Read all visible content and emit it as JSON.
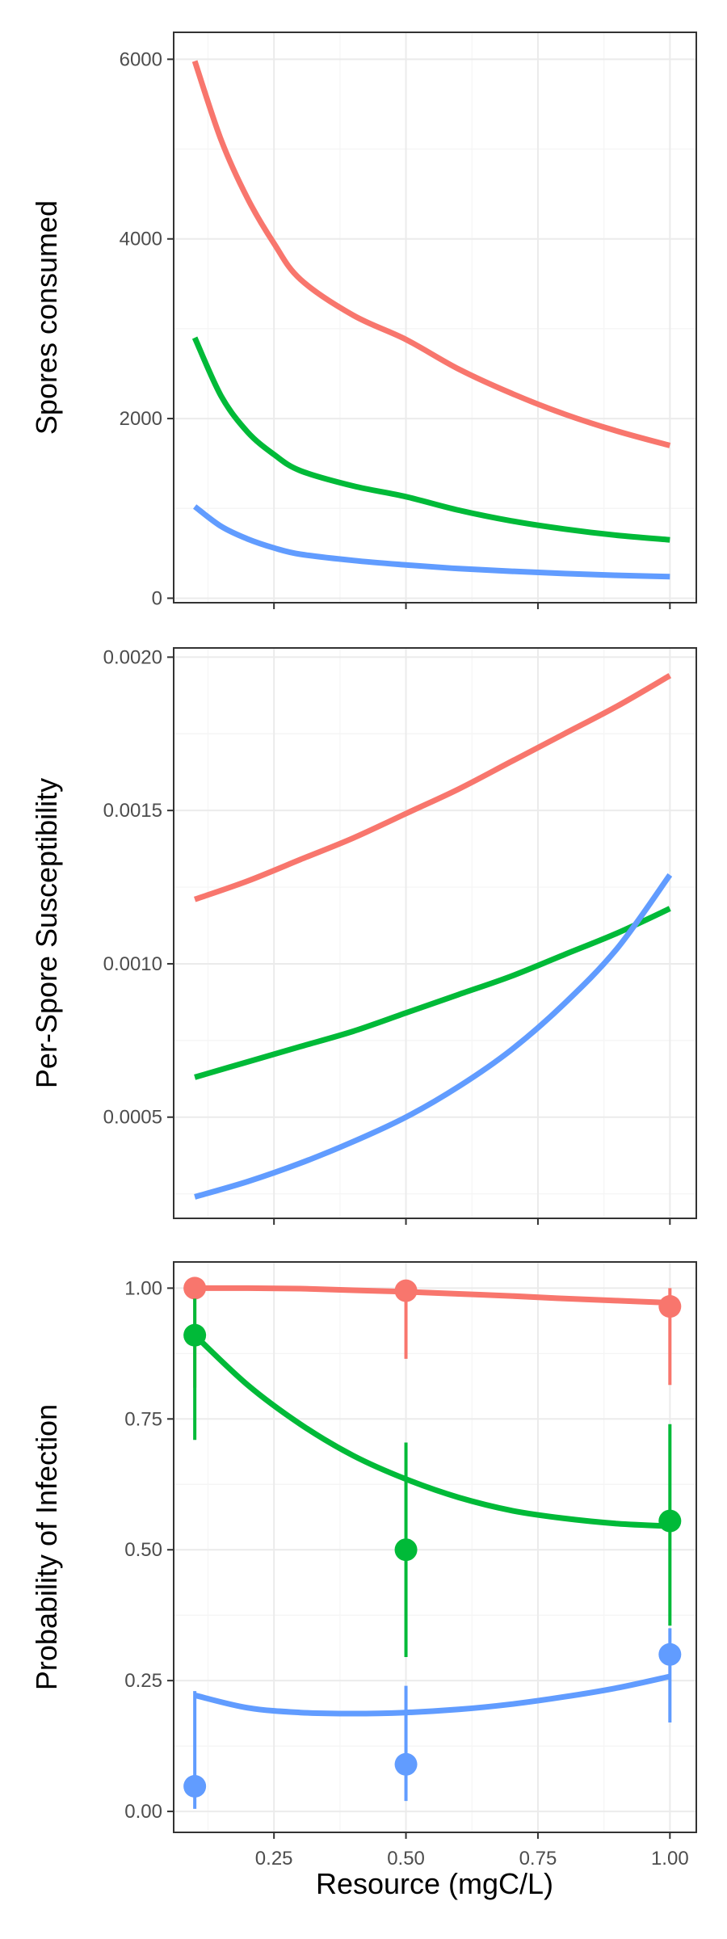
{
  "colors": {
    "red": "#F8766D",
    "green": "#00BA38",
    "blue": "#619CFF",
    "grid_major": "#EBEBEB",
    "grid_minor": "#F5F5F5",
    "panel_border": "#333333"
  },
  "xlabel": "Resource (mgC/L)",
  "x_ticks": [
    "0.25",
    "0.50",
    "0.75",
    "1.00"
  ],
  "chart_data": [
    {
      "type": "line",
      "title": "",
      "xlabel": "",
      "ylabel": "Spores consumed",
      "xlim": [
        0.06,
        1.05
      ],
      "ylim": [
        -50,
        6300
      ],
      "y_ticks": [
        0,
        2000,
        4000,
        6000
      ],
      "y_tick_labels": [
        "0",
        "2000",
        "4000",
        "6000"
      ],
      "series": [
        {
          "name": "red",
          "color": "#F8766D",
          "x": [
            0.1,
            0.15,
            0.2,
            0.25,
            0.3,
            0.4,
            0.5,
            0.6,
            0.7,
            0.8,
            0.9,
            1.0
          ],
          "y": [
            5980,
            5100,
            4450,
            3950,
            3550,
            3150,
            2880,
            2550,
            2280,
            2050,
            1860,
            1700
          ]
        },
        {
          "name": "green",
          "color": "#00BA38",
          "x": [
            0.1,
            0.15,
            0.2,
            0.25,
            0.3,
            0.4,
            0.5,
            0.6,
            0.7,
            0.8,
            0.9,
            1.0
          ],
          "y": [
            2900,
            2250,
            1850,
            1600,
            1420,
            1250,
            1130,
            980,
            860,
            770,
            700,
            650
          ]
        },
        {
          "name": "blue",
          "color": "#619CFF",
          "x": [
            0.1,
            0.15,
            0.2,
            0.25,
            0.3,
            0.4,
            0.5,
            0.6,
            0.7,
            0.8,
            0.9,
            1.0
          ],
          "y": [
            1020,
            800,
            660,
            560,
            490,
            420,
            370,
            330,
            300,
            275,
            255,
            240
          ]
        }
      ]
    },
    {
      "type": "line",
      "title": "",
      "xlabel": "",
      "ylabel": "Per-Spore Susceptibility",
      "xlim": [
        0.06,
        1.05
      ],
      "ylim": [
        0.00017,
        0.00203
      ],
      "y_ticks": [
        0.0005,
        0.001,
        0.0015,
        0.002
      ],
      "y_tick_labels": [
        "0.0005",
        "0.0010",
        "0.0015",
        "0.0020"
      ],
      "series": [
        {
          "name": "red",
          "color": "#F8766D",
          "x": [
            0.1,
            0.2,
            0.3,
            0.4,
            0.5,
            0.6,
            0.7,
            0.8,
            0.9,
            1.0
          ],
          "y": [
            0.00121,
            0.00127,
            0.00134,
            0.00141,
            0.00149,
            0.00157,
            0.00166,
            0.00175,
            0.00184,
            0.00194
          ]
        },
        {
          "name": "green",
          "color": "#00BA38",
          "x": [
            0.1,
            0.2,
            0.3,
            0.4,
            0.5,
            0.6,
            0.7,
            0.8,
            0.9,
            1.0
          ],
          "y": [
            0.00063,
            0.00068,
            0.00073,
            0.00078,
            0.00084,
            0.0009,
            0.00096,
            0.00103,
            0.0011,
            0.00118
          ]
        },
        {
          "name": "blue",
          "color": "#619CFF",
          "x": [
            0.1,
            0.2,
            0.3,
            0.4,
            0.5,
            0.6,
            0.7,
            0.8,
            0.9,
            1.0
          ],
          "y": [
            0.00024,
            0.00029,
            0.00035,
            0.00042,
            0.0005,
            0.0006,
            0.00072,
            0.00087,
            0.00105,
            0.00129
          ]
        }
      ]
    },
    {
      "type": "line",
      "title": "",
      "xlabel": "Resource (mgC/L)",
      "ylabel": "Probability of Infection",
      "xlim": [
        0.06,
        1.05
      ],
      "ylim": [
        -0.04,
        1.05
      ],
      "y_ticks": [
        0,
        0.25,
        0.5,
        0.75,
        1
      ],
      "y_tick_labels": [
        "0.00",
        "0.25",
        "0.50",
        "0.75",
        "1.00"
      ],
      "x_ticks": [
        0.25,
        0.5,
        0.75,
        1
      ],
      "x_tick_labels": [
        "0.25",
        "0.50",
        "0.75",
        "1.00"
      ],
      "series": [
        {
          "name": "red",
          "color": "#F8766D",
          "x": [
            0.1,
            0.2,
            0.3,
            0.4,
            0.5,
            0.6,
            0.7,
            0.8,
            0.9,
            1.0
          ],
          "y": [
            1.0,
            1.0,
            0.999,
            0.996,
            0.993,
            0.989,
            0.985,
            0.98,
            0.976,
            0.972
          ],
          "points": {
            "x": [
              0.1,
              0.5,
              1.0
            ],
            "y": [
              1.0,
              0.995,
              0.965
            ],
            "lower": [
              0.81,
              0.865,
              0.815
            ],
            "upper": [
              1.0,
              1.0,
              1.0
            ]
          }
        },
        {
          "name": "green",
          "color": "#00BA38",
          "x": [
            0.1,
            0.2,
            0.3,
            0.4,
            0.5,
            0.6,
            0.7,
            0.8,
            0.9,
            1.0
          ],
          "y": [
            0.91,
            0.815,
            0.74,
            0.68,
            0.635,
            0.6,
            0.575,
            0.56,
            0.55,
            0.545
          ],
          "points": {
            "x": [
              0.1,
              0.5,
              1.0
            ],
            "y": [
              0.91,
              0.5,
              0.555
            ],
            "lower": [
              0.71,
              0.295,
              0.355
            ],
            "upper": [
              0.98,
              0.705,
              0.74
            ]
          }
        },
        {
          "name": "blue",
          "color": "#619CFF",
          "x": [
            0.1,
            0.2,
            0.3,
            0.4,
            0.5,
            0.6,
            0.7,
            0.8,
            0.9,
            1.0
          ],
          "y": [
            0.222,
            0.198,
            0.189,
            0.187,
            0.189,
            0.195,
            0.205,
            0.219,
            0.236,
            0.258
          ],
          "points": {
            "x": [
              0.1,
              0.5,
              1.0
            ],
            "y": [
              0.048,
              0.09,
              0.3
            ],
            "lower": [
              0.005,
              0.02,
              0.17
            ],
            "upper": [
              0.23,
              0.24,
              0.35
            ]
          }
        }
      ]
    }
  ]
}
